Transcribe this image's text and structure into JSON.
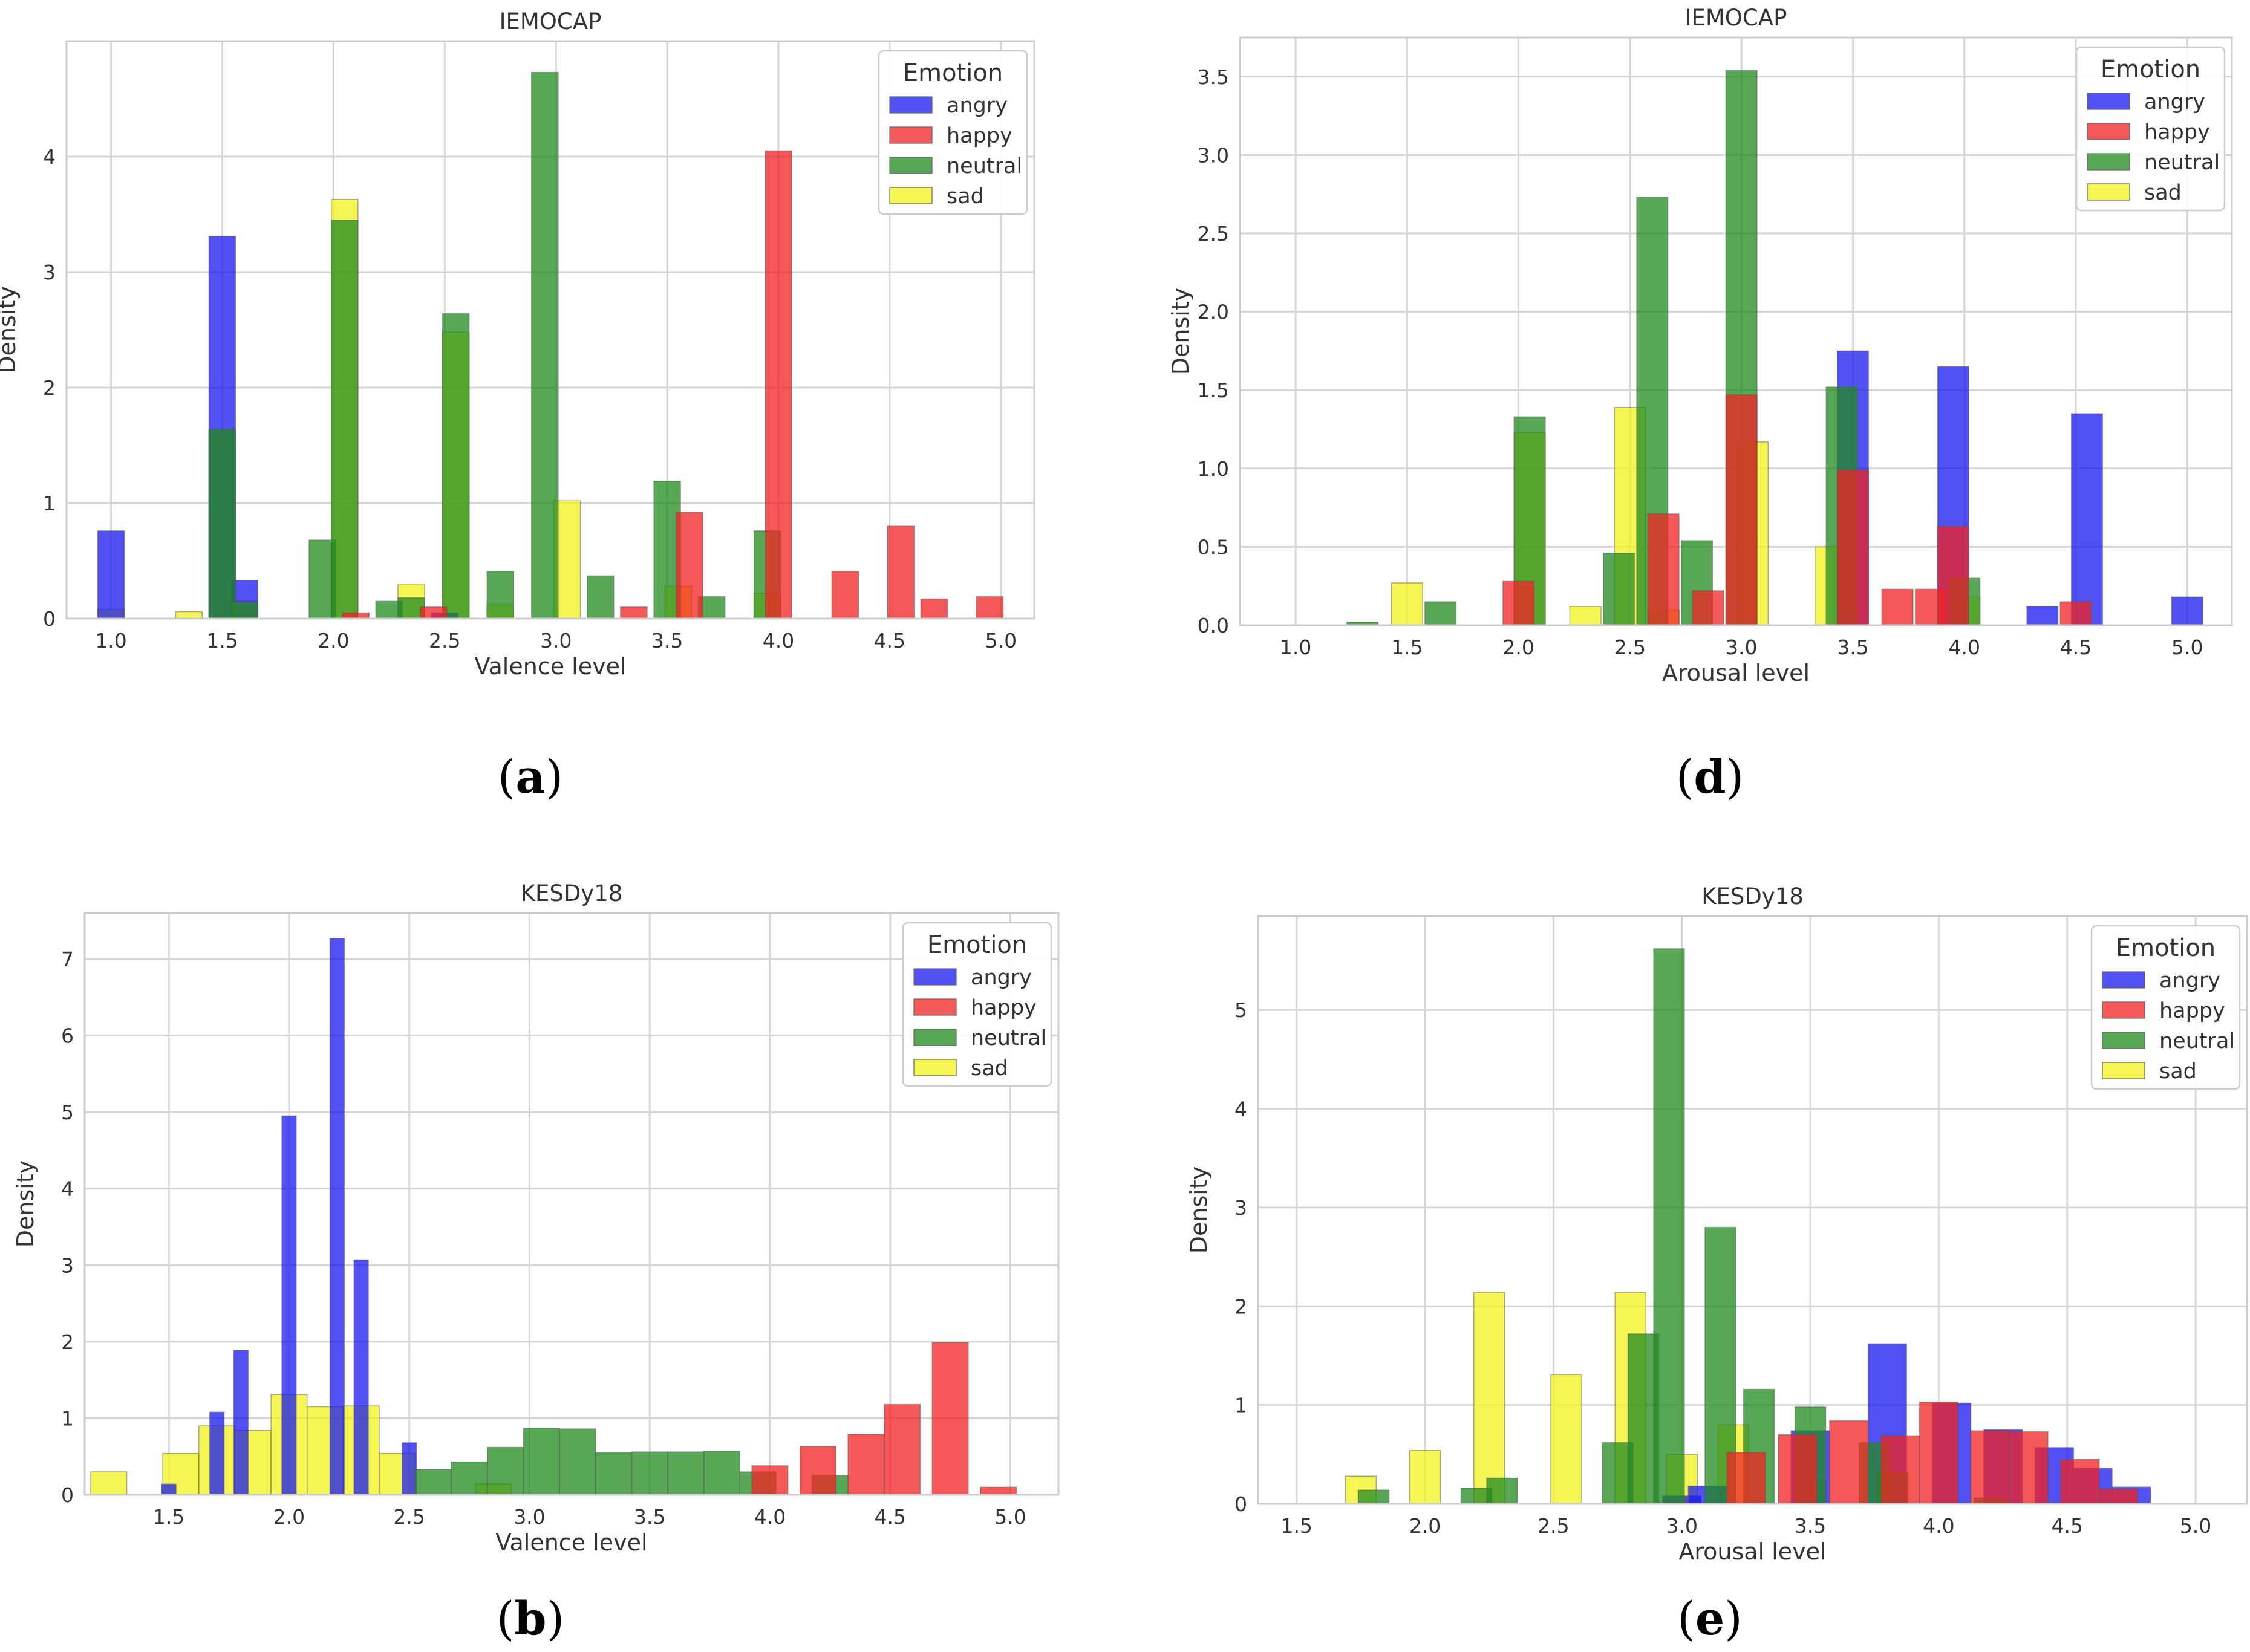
{
  "chart_data": [
    {
      "id": "a",
      "type": "histogram",
      "title": "IEMOCAP",
      "xlabel": "Valence level",
      "ylabel": "Density",
      "xlim": [
        0.8,
        5.15
      ],
      "ylim": [
        0,
        5.0
      ],
      "xticks": [
        "1.0",
        "1.5",
        "2.0",
        "2.5",
        "3.0",
        "3.5",
        "4.0",
        "4.5",
        "5.0"
      ],
      "yticks": [
        "0",
        "1",
        "2",
        "3",
        "4"
      ],
      "bin_width": 0.12,
      "legend": {
        "title": "Emotion",
        "position": "top-right",
        "entries": [
          "angry",
          "happy",
          "neutral",
          "sad"
        ]
      },
      "series": [
        {
          "name": "angry",
          "bins": [
            [
              1.0,
              0.76
            ],
            [
              1.5,
              3.31
            ],
            [
              1.6,
              0.33
            ],
            [
              2.5,
              0.05
            ]
          ]
        },
        {
          "name": "happy",
          "bins": [
            [
              2.1,
              0.05
            ],
            [
              2.45,
              0.1
            ],
            [
              3.35,
              0.1
            ],
            [
              3.6,
              0.92
            ],
            [
              4.0,
              4.05
            ],
            [
              4.3,
              0.41
            ],
            [
              4.55,
              0.8
            ],
            [
              4.7,
              0.17
            ],
            [
              4.95,
              0.19
            ]
          ]
        },
        {
          "name": "neutral",
          "bins": [
            [
              1.5,
              1.64
            ],
            [
              1.6,
              0.14
            ],
            [
              1.95,
              0.68
            ],
            [
              2.05,
              3.45
            ],
            [
              2.25,
              0.15
            ],
            [
              2.35,
              0.18
            ],
            [
              2.55,
              2.64
            ],
            [
              2.75,
              0.41
            ],
            [
              2.95,
              4.73
            ],
            [
              3.2,
              0.37
            ],
            [
              3.5,
              1.19
            ],
            [
              3.7,
              0.19
            ],
            [
              3.95,
              0.76
            ]
          ]
        },
        {
          "name": "sad",
          "bins": [
            [
              1.0,
              0.08
            ],
            [
              1.35,
              0.06
            ],
            [
              1.5,
              1.63
            ],
            [
              1.6,
              0.15
            ],
            [
              2.05,
              3.63
            ],
            [
              2.35,
              0.3
            ],
            [
              2.55,
              2.48
            ],
            [
              2.75,
              0.12
            ],
            [
              3.05,
              1.02
            ],
            [
              3.55,
              0.28
            ],
            [
              3.95,
              0.22
            ]
          ]
        }
      ]
    },
    {
      "id": "d",
      "type": "histogram",
      "title": "IEMOCAP",
      "xlabel": "Arousal level",
      "ylabel": "Density",
      "xlim": [
        0.75,
        5.2
      ],
      "ylim": [
        0,
        3.75
      ],
      "xticks": [
        "1.0",
        "1.5",
        "2.0",
        "2.5",
        "3.0",
        "3.5",
        "4.0",
        "4.5",
        "5.0"
      ],
      "yticks": [
        "0.0",
        "0.5",
        "1.0",
        "1.5",
        "2.0",
        "2.5",
        "3.0",
        "3.5"
      ],
      "bin_width": 0.14,
      "legend": {
        "title": "Emotion",
        "position": "top-right",
        "entries": [
          "angry",
          "happy",
          "neutral",
          "sad"
        ]
      },
      "series": [
        {
          "name": "angry",
          "bins": [
            [
              3.5,
              1.75
            ],
            [
              3.95,
              1.65
            ],
            [
              4.35,
              0.12
            ],
            [
              4.55,
              1.35
            ],
            [
              5.0,
              0.18
            ]
          ]
        },
        {
          "name": "happy",
          "bins": [
            [
              2.0,
              0.28
            ],
            [
              2.65,
              0.71
            ],
            [
              2.85,
              0.22
            ],
            [
              3.0,
              1.47
            ],
            [
              3.5,
              0.99
            ],
            [
              3.7,
              0.23
            ],
            [
              3.85,
              0.23
            ],
            [
              3.95,
              0.63
            ],
            [
              4.5,
              0.15
            ]
          ]
        },
        {
          "name": "neutral",
          "bins": [
            [
              1.3,
              0.02
            ],
            [
              1.65,
              0.15
            ],
            [
              2.05,
              1.33
            ],
            [
              2.45,
              0.46
            ],
            [
              2.6,
              2.73
            ],
            [
              2.8,
              0.54
            ],
            [
              3.0,
              3.54
            ],
            [
              3.45,
              1.52
            ],
            [
              4.0,
              0.3
            ]
          ]
        },
        {
          "name": "sad",
          "bins": [
            [
              1.5,
              0.27
            ],
            [
              2.05,
              1.23
            ],
            [
              2.3,
              0.12
            ],
            [
              2.5,
              1.39
            ],
            [
              2.65,
              0.1
            ],
            [
              3.05,
              1.17
            ],
            [
              3.4,
              0.5
            ],
            [
              4.0,
              0.18
            ]
          ]
        }
      ]
    },
    {
      "id": "b",
      "type": "histogram",
      "title": "KESDy18",
      "xlabel": "Valence level",
      "ylabel": "Density",
      "xlim": [
        1.15,
        5.2
      ],
      "ylim": [
        0,
        7.6
      ],
      "xticks": [
        "1.5",
        "2.0",
        "2.5",
        "3.0",
        "3.5",
        "4.0",
        "4.5",
        "5.0"
      ],
      "yticks": [
        "0",
        "1",
        "2",
        "3",
        "4",
        "5",
        "6",
        "7"
      ],
      "bin_width": 0.06,
      "legend": {
        "title": "Emotion",
        "position": "top-right",
        "entries": [
          "angry",
          "happy",
          "neutral",
          "sad"
        ]
      },
      "series": [
        {
          "name": "angry",
          "bins": [
            [
              1.5,
              0.14
            ],
            [
              1.7,
              1.08
            ],
            [
              1.8,
              1.89
            ],
            [
              2.0,
              4.95
            ],
            [
              2.2,
              7.27
            ],
            [
              2.3,
              3.07
            ],
            [
              2.5,
              0.68
            ]
          ]
        },
        {
          "name": "happy",
          "wide": true,
          "bins": [
            [
              4.0,
              0.38
            ],
            [
              4.2,
              0.63
            ],
            [
              4.4,
              0.79
            ],
            [
              4.55,
              1.18
            ],
            [
              4.75,
              1.99
            ],
            [
              4.95,
              0.1
            ]
          ]
        },
        {
          "name": "neutral",
          "wide": true,
          "bins": [
            [
              2.6,
              0.33
            ],
            [
              2.75,
              0.43
            ],
            [
              2.9,
              0.62
            ],
            [
              3.05,
              0.87
            ],
            [
              3.2,
              0.86
            ],
            [
              3.35,
              0.55
            ],
            [
              3.5,
              0.56
            ],
            [
              3.65,
              0.56
            ],
            [
              3.8,
              0.57
            ],
            [
              3.95,
              0.3
            ],
            [
              4.25,
              0.25
            ]
          ]
        },
        {
          "name": "sad",
          "wide": true,
          "bins": [
            [
              1.25,
              0.3
            ],
            [
              1.55,
              0.54
            ],
            [
              1.7,
              0.9
            ],
            [
              1.85,
              0.84
            ],
            [
              2.0,
              1.31
            ],
            [
              2.15,
              1.15
            ],
            [
              2.3,
              1.16
            ],
            [
              2.45,
              0.54
            ],
            [
              2.85,
              0.14
            ]
          ]
        }
      ]
    },
    {
      "id": "e",
      "type": "histogram",
      "title": "KESDy18",
      "xlabel": "Arousal level",
      "ylabel": "Density",
      "xlim": [
        1.35,
        5.2
      ],
      "ylim": [
        0,
        5.95
      ],
      "xticks": [
        "1.5",
        "2.0",
        "2.5",
        "3.0",
        "3.5",
        "4.0",
        "4.5",
        "5.0"
      ],
      "yticks": [
        "0",
        "1",
        "2",
        "3",
        "4",
        "5"
      ],
      "bin_width": 0.12,
      "legend": {
        "title": "Emotion",
        "position": "top-right",
        "entries": [
          "angry",
          "happy",
          "neutral",
          "sad"
        ]
      },
      "series": [
        {
          "name": "angry",
          "wide": true,
          "bins": [
            [
              3.0,
              0.08
            ],
            [
              3.1,
              0.18
            ],
            [
              3.5,
              0.74
            ],
            [
              3.8,
              1.62
            ],
            [
              4.05,
              1.02
            ],
            [
              4.25,
              0.75
            ],
            [
              4.45,
              0.57
            ],
            [
              4.6,
              0.36
            ],
            [
              4.75,
              0.17
            ]
          ]
        },
        {
          "name": "happy",
          "wide": true,
          "bins": [
            [
              3.25,
              0.52
            ],
            [
              3.45,
              0.7
            ],
            [
              3.65,
              0.84
            ],
            [
              3.85,
              0.69
            ],
            [
              4.0,
              1.03
            ],
            [
              4.2,
              0.74
            ],
            [
              4.35,
              0.73
            ],
            [
              4.55,
              0.45
            ],
            [
              4.7,
              0.15
            ]
          ]
        },
        {
          "name": "neutral",
          "bins": [
            [
              1.8,
              0.14
            ],
            [
              2.2,
              0.16
            ],
            [
              2.3,
              0.26
            ],
            [
              2.75,
              0.62
            ],
            [
              2.85,
              1.72
            ],
            [
              2.95,
              5.62
            ],
            [
              3.15,
              2.8
            ],
            [
              3.3,
              1.16
            ],
            [
              3.5,
              0.98
            ],
            [
              3.75,
              0.62
            ],
            [
              3.82,
              0.32
            ],
            [
              4.2,
              0.06
            ]
          ]
        },
        {
          "name": "sad",
          "bins": [
            [
              1.75,
              0.28
            ],
            [
              2.0,
              0.54
            ],
            [
              2.25,
              2.14
            ],
            [
              2.55,
              1.31
            ],
            [
              2.8,
              2.14
            ],
            [
              3.0,
              0.5
            ],
            [
              3.2,
              0.8
            ],
            [
              3.5,
              0.24
            ]
          ]
        }
      ]
    }
  ],
  "colors": {
    "angry": "#1c1cf0",
    "happy": "#f02424",
    "neutral": "#228b22",
    "sad": "#f2f21e"
  },
  "captions": {
    "a": "a",
    "d": "d",
    "b": "b",
    "e": "e"
  }
}
